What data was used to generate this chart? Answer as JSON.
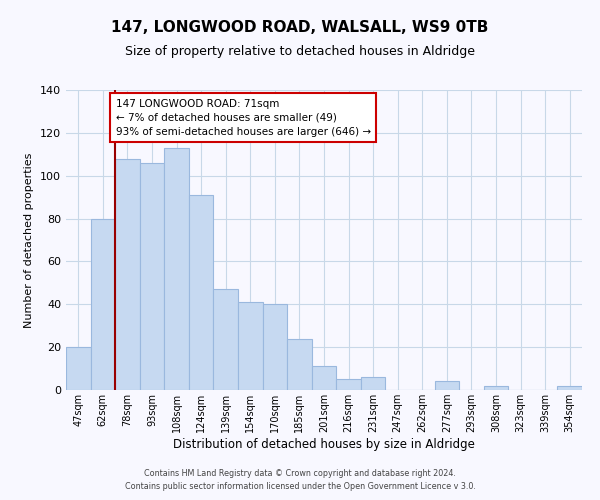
{
  "title": "147, LONGWOOD ROAD, WALSALL, WS9 0TB",
  "subtitle": "Size of property relative to detached houses in Aldridge",
  "xlabel": "Distribution of detached houses by size in Aldridge",
  "ylabel": "Number of detached properties",
  "footer_line1": "Contains HM Land Registry data © Crown copyright and database right 2024.",
  "footer_line2": "Contains public sector information licensed under the Open Government Licence v 3.0.",
  "bar_labels": [
    "47sqm",
    "62sqm",
    "78sqm",
    "93sqm",
    "108sqm",
    "124sqm",
    "139sqm",
    "154sqm",
    "170sqm",
    "185sqm",
    "201sqm",
    "216sqm",
    "231sqm",
    "247sqm",
    "262sqm",
    "277sqm",
    "293sqm",
    "308sqm",
    "323sqm",
    "339sqm",
    "354sqm"
  ],
  "bar_values": [
    20,
    80,
    108,
    106,
    113,
    91,
    47,
    41,
    40,
    24,
    11,
    5,
    6,
    0,
    0,
    4,
    0,
    2,
    0,
    0,
    2
  ],
  "bar_color": "#c6d9f1",
  "bar_edge_color": "#9ab8de",
  "annotation_title": "147 LONGWOOD ROAD: 71sqm",
  "annotation_line2": "← 7% of detached houses are smaller (49)",
  "annotation_line3": "93% of semi-detached houses are larger (646) →",
  "annotation_box_color": "#ffffff",
  "annotation_border_color": "#cc0000",
  "vline_color": "#990000",
  "vline_x_index": 1.5,
  "ylim": [
    0,
    140
  ],
  "background_color": "#f8f8ff",
  "grid_color": "#c8d8e8",
  "title_fontsize": 11,
  "subtitle_fontsize": 9
}
